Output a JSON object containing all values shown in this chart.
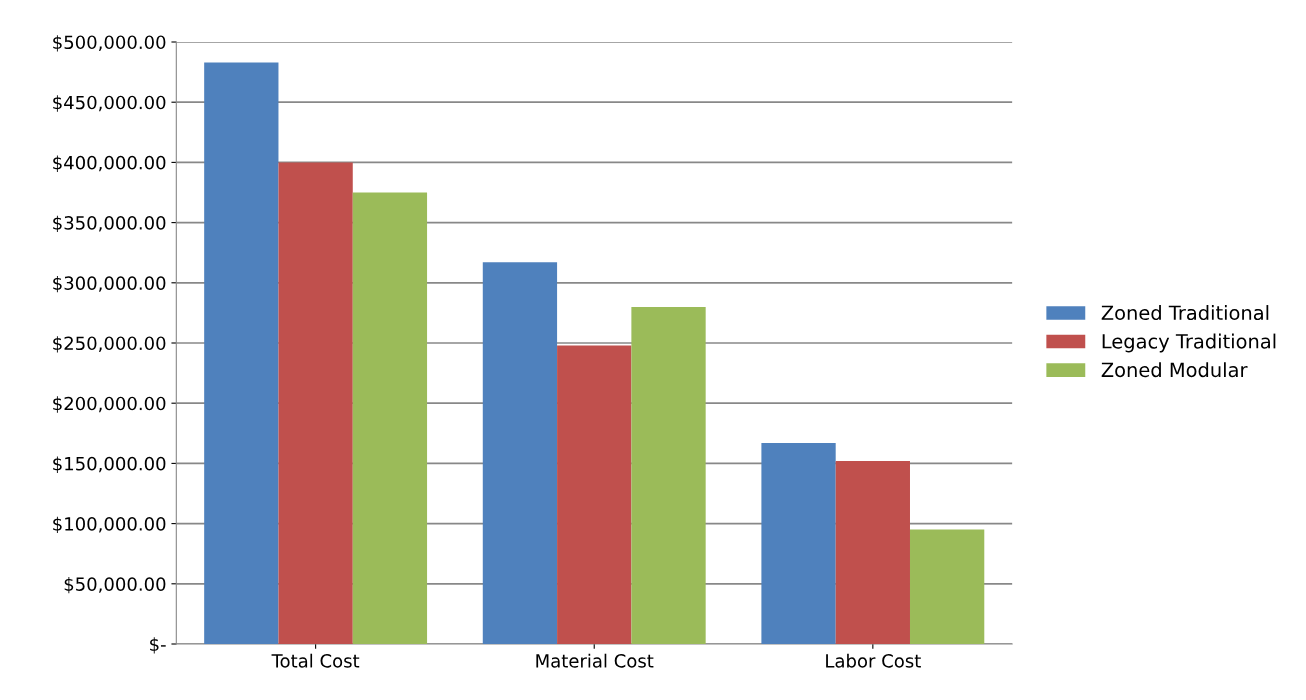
{
  "chart_data": {
    "type": "bar",
    "categories": [
      "Total Cost",
      "Material Cost",
      "Labor Cost"
    ],
    "series": [
      {
        "name": "Zoned Traditional",
        "color": "#4f81bd",
        "values": [
          483000,
          317000,
          167000
        ]
      },
      {
        "name": "Legacy Traditional",
        "color": "#c0504d",
        "values": [
          400000,
          248000,
          152000
        ]
      },
      {
        "name": "Zoned Modular",
        "color": "#9bbb59",
        "values": [
          375000,
          280000,
          95000
        ]
      }
    ],
    "ylim": [
      0,
      500000
    ],
    "yticks": [
      {
        "value": 0,
        "label": "$-"
      },
      {
        "value": 50000,
        "label": "$50,000.00"
      },
      {
        "value": 100000,
        "label": "$100,000.00"
      },
      {
        "value": 150000,
        "label": "$150,000.00"
      },
      {
        "value": 200000,
        "label": "$200,000.00"
      },
      {
        "value": 250000,
        "label": "$250,000.00"
      },
      {
        "value": 300000,
        "label": "$300,000.00"
      },
      {
        "value": 350000,
        "label": "$350,000.00"
      },
      {
        "value": 400000,
        "label": "$400,000.00"
      },
      {
        "value": 450000,
        "label": "$450,000.00"
      },
      {
        "value": 500000,
        "label": "$500,000.00"
      }
    ],
    "grid": "y",
    "legend": "right"
  }
}
